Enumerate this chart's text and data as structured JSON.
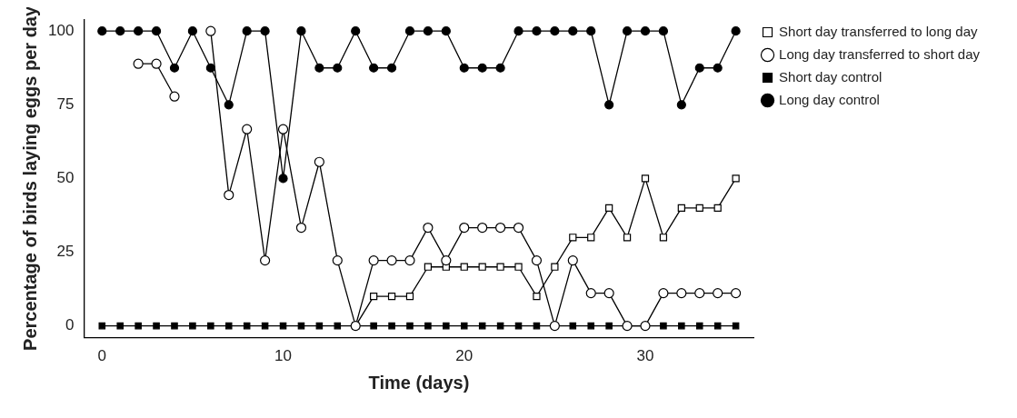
{
  "chart_data": {
    "type": "line",
    "xlabel": "Time (days)",
    "ylabel": "Percentage of birds laying eggs per day",
    "x": [
      0,
      1,
      2,
      3,
      4,
      5,
      6,
      7,
      8,
      9,
      10,
      11,
      12,
      13,
      14,
      15,
      16,
      17,
      18,
      19,
      20,
      21,
      22,
      23,
      24,
      25,
      26,
      27,
      28,
      29,
      30,
      31,
      32,
      33,
      34,
      35
    ],
    "xlim": [
      -1,
      36
    ],
    "xticks": [
      0,
      10,
      20,
      30
    ],
    "ylim": [
      -4,
      104
    ],
    "yticks": [
      0,
      25,
      50,
      75,
      100
    ],
    "grid": false,
    "legend": "right",
    "line_style": "solid",
    "series": [
      {
        "name": "Short day transferred to long day",
        "color": "#000000",
        "marker": "square",
        "values": [
          null,
          null,
          null,
          null,
          null,
          null,
          null,
          null,
          null,
          null,
          null,
          null,
          null,
          null,
          0,
          10,
          10,
          10,
          20,
          20,
          20,
          20,
          20,
          20,
          10,
          20,
          30,
          30,
          40,
          30,
          50,
          30,
          40,
          40,
          40,
          50
        ]
      },
      {
        "name": "Long day transferred to short day",
        "color": "#000000",
        "marker": "circle",
        "values": [
          null,
          null,
          88.9,
          88.9,
          77.8,
          null,
          100,
          44.4,
          66.7,
          22.2,
          66.7,
          33.3,
          55.6,
          22.2,
          0,
          22.2,
          22.2,
          22.2,
          33.3,
          22.2,
          33.3,
          33.3,
          33.3,
          33.3,
          22.2,
          0,
          22.2,
          11.1,
          11.1,
          0,
          0,
          11.1,
          11.1,
          11.1,
          11.1,
          11.1
        ]
      },
      {
        "name": "Short day control",
        "color": "#000000",
        "marker": "square",
        "values": [
          0,
          0,
          0,
          0,
          0,
          0,
          0,
          0,
          0,
          0,
          0,
          0,
          0,
          0,
          0,
          0,
          0,
          0,
          0,
          0,
          0,
          0,
          0,
          0,
          0,
          0,
          0,
          0,
          0,
          0,
          0,
          0,
          0,
          0,
          0,
          0
        ]
      },
      {
        "name": "Long day control",
        "color": "#000000",
        "marker": "circle",
        "values": [
          100,
          100,
          100,
          100,
          87.5,
          100,
          87.5,
          75,
          100,
          100,
          50,
          100,
          87.5,
          87.5,
          100,
          87.5,
          87.5,
          100,
          100,
          100,
          87.5,
          87.5,
          87.5,
          100,
          100,
          100,
          100,
          100,
          75,
          100,
          100,
          100,
          75,
          87.5,
          87.5,
          100
        ]
      }
    ]
  }
}
